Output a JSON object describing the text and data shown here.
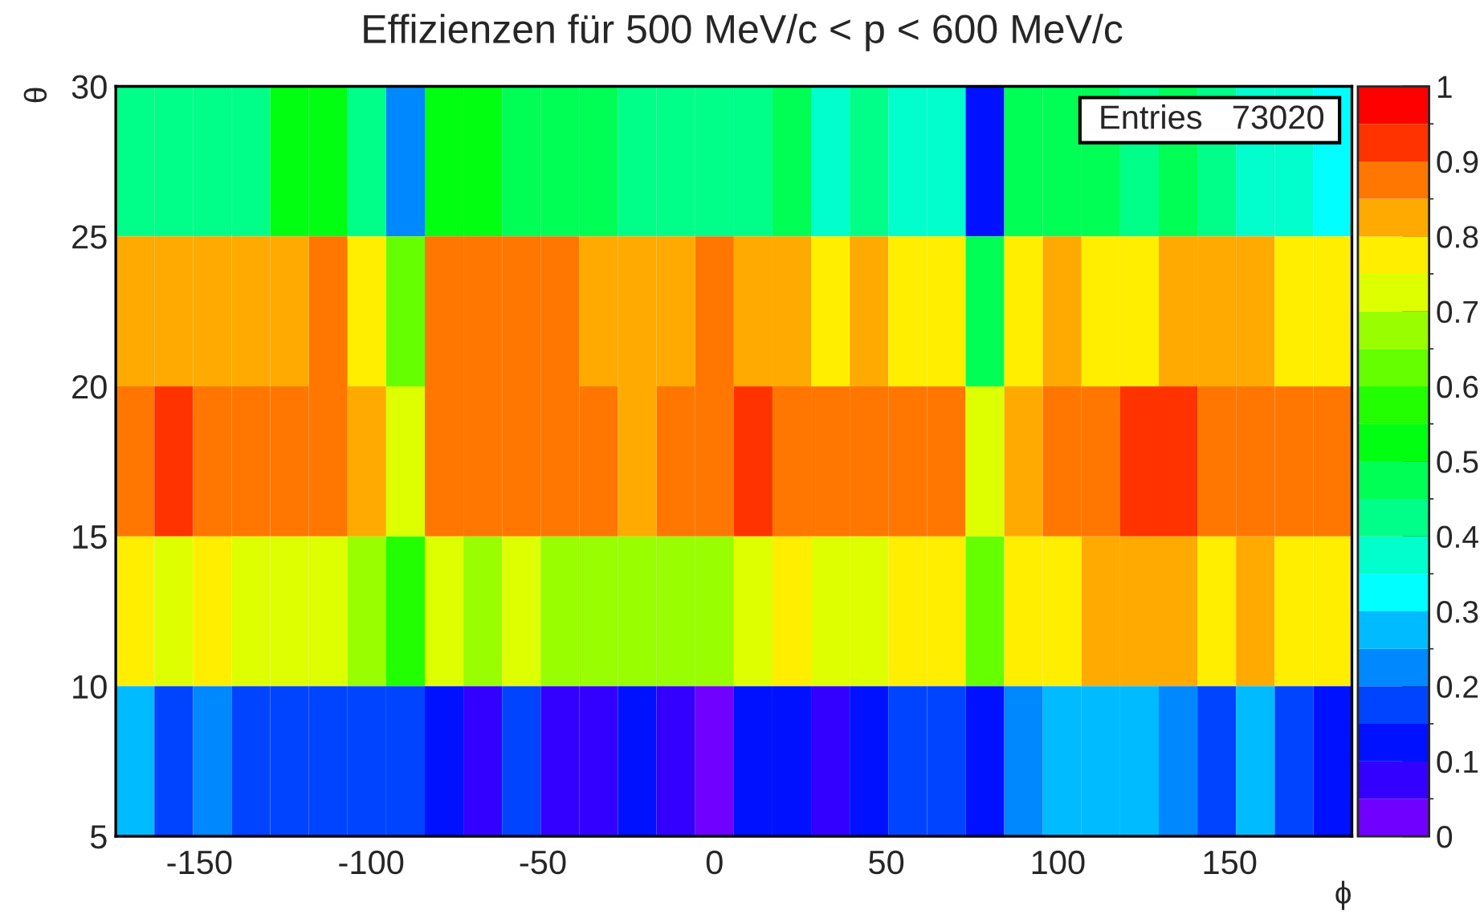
{
  "chart_data": {
    "type": "heatmap",
    "title": "Effizienzen für 500 MeV/c < p < 600 MeV/c",
    "xlabel": "ϕ",
    "ylabel": "θ",
    "cells": [
      [
        0.425,
        0.425,
        0.425,
        0.425,
        0.525,
        0.525,
        0.425,
        0.225,
        0.525,
        0.525,
        0.475,
        0.475,
        0.475,
        0.425,
        0.425,
        0.425,
        0.425,
        0.475,
        0.375,
        0.425,
        0.375,
        0.375,
        0.125,
        0.475,
        0.475,
        0.475,
        0.425,
        0.475,
        0.425,
        0.375,
        0.375,
        0.325
      ],
      [
        0.825,
        0.825,
        0.825,
        0.825,
        0.825,
        0.875,
        0.775,
        0.625,
        0.875,
        0.875,
        0.875,
        0.875,
        0.825,
        0.825,
        0.825,
        0.875,
        0.825,
        0.825,
        0.775,
        0.825,
        0.775,
        0.775,
        0.475,
        0.775,
        0.825,
        0.775,
        0.775,
        0.825,
        0.825,
        0.825,
        0.775,
        0.775
      ],
      [
        0.875,
        0.925,
        0.875,
        0.875,
        0.875,
        0.875,
        0.825,
        0.725,
        0.875,
        0.875,
        0.875,
        0.875,
        0.875,
        0.825,
        0.875,
        0.875,
        0.925,
        0.875,
        0.875,
        0.875,
        0.875,
        0.875,
        0.725,
        0.825,
        0.875,
        0.875,
        0.925,
        0.925,
        0.875,
        0.875,
        0.875,
        0.875
      ],
      [
        0.775,
        0.725,
        0.775,
        0.725,
        0.725,
        0.725,
        0.675,
        0.575,
        0.725,
        0.675,
        0.725,
        0.675,
        0.675,
        0.675,
        0.675,
        0.675,
        0.725,
        0.775,
        0.725,
        0.725,
        0.775,
        0.775,
        0.625,
        0.775,
        0.775,
        0.825,
        0.825,
        0.825,
        0.775,
        0.825,
        0.775,
        0.775
      ],
      [
        0.275,
        0.175,
        0.225,
        0.175,
        0.175,
        0.175,
        0.175,
        0.175,
        0.125,
        0.075,
        0.175,
        0.075,
        0.075,
        0.125,
        0.075,
        0.025,
        0.125,
        0.125,
        0.075,
        0.125,
        0.175,
        0.175,
        0.125,
        0.225,
        0.275,
        0.275,
        0.275,
        0.225,
        0.175,
        0.275,
        0.175,
        0.125
      ]
    ],
    "xlim": [
      -174.375,
      185.625
    ],
    "ylim": [
      5,
      30
    ],
    "xticks": [
      -150,
      -100,
      -50,
      0,
      50,
      100,
      150
    ],
    "yticks": [
      5,
      10,
      15,
      20,
      25,
      30
    ],
    "clim": [
      0,
      1
    ],
    "cticks": [
      0,
      0.1,
      0.2,
      0.3,
      0.4,
      0.5,
      0.6,
      0.7,
      0.8,
      0.9,
      1
    ],
    "annotations": [
      "Entries",
      "73020"
    ],
    "grid": false,
    "legend": false
  }
}
